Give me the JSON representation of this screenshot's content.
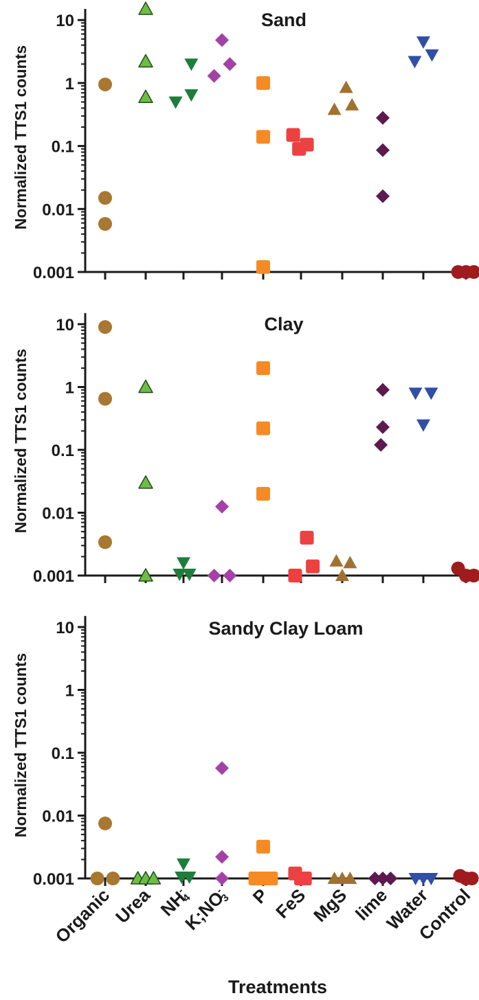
{
  "chart_data": {
    "type": "scatter",
    "xlabel": "Treatments",
    "categories": [
      "Organic",
      "Urea",
      "NH4-",
      "K;NO3-",
      "P",
      "FeS",
      "MgS",
      "lime",
      "Water",
      "Control"
    ],
    "category_labels": [
      {
        "base": "Organic"
      },
      {
        "base": "Urea"
      },
      {
        "base": "NH",
        "sub": "4",
        "sup": "-"
      },
      {
        "base": "K;NO",
        "sub": "3",
        "sup": "-"
      },
      {
        "base": "P"
      },
      {
        "base": "FeS"
      },
      {
        "base": "MgS"
      },
      {
        "base": "lime"
      },
      {
        "base": "Water"
      },
      {
        "base": "Control"
      }
    ],
    "marker_shapes": [
      "circle",
      "triangle-up",
      "triangle-down",
      "diamond",
      "square",
      "square",
      "triangle-up",
      "diamond",
      "triangle-down",
      "circle"
    ],
    "colors": [
      "#a87731",
      "#6dbd45",
      "#1e7d3b",
      "#a441a6",
      "#f68a24",
      "#ed4040",
      "#a07130",
      "#5c1a4e",
      "#3050a5",
      "#9e1c1e"
    ],
    "yscale": "log",
    "ylim": [
      0.001,
      15
    ],
    "yticks": [
      0.001,
      0.01,
      0.1,
      1,
      10
    ],
    "ytick_labels": [
      "0.001",
      "0.01",
      "0.1",
      "1",
      "10"
    ],
    "ylabel": "Normalized TTS1 counts",
    "panels": [
      {
        "title": "Sand",
        "series": [
          {
            "values": [
              0.95,
              0.015,
              0.0058
            ],
            "offsets": [
              0,
              0,
              0
            ]
          },
          {
            "values": [
              15,
              2.2,
              0.6
            ],
            "offsets": [
              0,
              0,
              0
            ]
          },
          {
            "values": [
              2.0,
              0.5,
              0.65
            ],
            "offsets": [
              0.2,
              -0.2,
              0.2
            ]
          },
          {
            "values": [
              4.8,
              1.3,
              2.0
            ],
            "offsets": [
              0,
              -0.2,
              0.2
            ]
          },
          {
            "values": [
              1.0,
              0.14,
              0.0012
            ],
            "offsets": [
              0,
              0,
              0
            ]
          },
          {
            "values": [
              0.15,
              0.09,
              0.105
            ],
            "offsets": [
              -0.2,
              -0.05,
              0.15
            ]
          },
          {
            "values": [
              0.85,
              0.38,
              0.45
            ],
            "offsets": [
              0.1,
              -0.2,
              0.25
            ]
          },
          {
            "values": [
              0.28,
              0.086,
              0.016
            ],
            "offsets": [
              0,
              0,
              0
            ]
          },
          {
            "values": [
              4.5,
              2.2,
              2.8
            ],
            "offsets": [
              0,
              -0.22,
              0.22
            ]
          },
          {
            "values": [
              0.001,
              0.001,
              0.001
            ],
            "offsets": [
              -0.2,
              0,
              0.2
            ]
          }
        ]
      },
      {
        "title": "Clay",
        "series": [
          {
            "values": [
              9.0,
              0.65,
              0.0034
            ],
            "offsets": [
              0,
              0,
              0
            ]
          },
          {
            "values": [
              1.0,
              0.03,
              0.001
            ],
            "offsets": [
              0,
              0,
              0
            ]
          },
          {
            "values": [
              0.0016,
              0.00105,
              0.00105
            ],
            "offsets": [
              0,
              -0.1,
              0.15
            ]
          },
          {
            "values": [
              0.0125,
              0.001,
              0.001
            ],
            "offsets": [
              0,
              -0.2,
              0.2
            ]
          },
          {
            "values": [
              2.0,
              0.22,
              0.02
            ],
            "offsets": [
              0,
              0,
              0
            ]
          },
          {
            "values": [
              0.004,
              0.001,
              0.0014
            ],
            "offsets": [
              0.15,
              -0.15,
              0.3
            ]
          },
          {
            "values": [
              0.0017,
              0.001,
              0.0016
            ],
            "offsets": [
              -0.15,
              0,
              0.2
            ]
          },
          {
            "values": [
              0.9,
              0.23,
              0.12
            ],
            "offsets": [
              0,
              0,
              -0.05
            ]
          },
          {
            "values": [
              0.8,
              0.8,
              0.25
            ],
            "offsets": [
              -0.2,
              0.2,
              0
            ]
          },
          {
            "values": [
              0.0013,
              0.001,
              0.001
            ],
            "offsets": [
              -0.2,
              0,
              0.2
            ]
          }
        ]
      },
      {
        "title": "Sandy Clay Loam",
        "series": [
          {
            "values": [
              0.0075,
              0.001,
              0.001
            ],
            "offsets": [
              0,
              -0.2,
              0.2
            ]
          },
          {
            "values": [
              0.001,
              0.001,
              0.001
            ],
            "offsets": [
              -0.2,
              0,
              0.2
            ]
          },
          {
            "values": [
              0.0017,
              0.00105,
              0.00105
            ],
            "offsets": [
              0,
              -0.05,
              0.15
            ]
          },
          {
            "values": [
              0.057,
              0.0022,
              0.001
            ],
            "offsets": [
              0,
              0,
              0
            ]
          },
          {
            "values": [
              0.0032,
              0.001,
              0.001,
              0.001
            ],
            "offsets": [
              0,
              -0.2,
              0,
              0.2
            ]
          },
          {
            "values": [
              0.0012,
              0.001,
              0.001
            ],
            "offsets": [
              -0.15,
              0,
              0.1
            ]
          },
          {
            "values": [
              0.001,
              0.001,
              0.001
            ],
            "offsets": [
              -0.2,
              0,
              0.2
            ]
          },
          {
            "values": [
              0.001,
              0.001,
              0.001
            ],
            "offsets": [
              -0.2,
              0,
              0.2
            ]
          },
          {
            "values": [
              0.001,
              0.001,
              0.001
            ],
            "offsets": [
              -0.2,
              0,
              0.2
            ]
          },
          {
            "values": [
              0.0011,
              0.001,
              0.001
            ],
            "offsets": [
              -0.15,
              0,
              0.15
            ]
          }
        ]
      }
    ]
  }
}
